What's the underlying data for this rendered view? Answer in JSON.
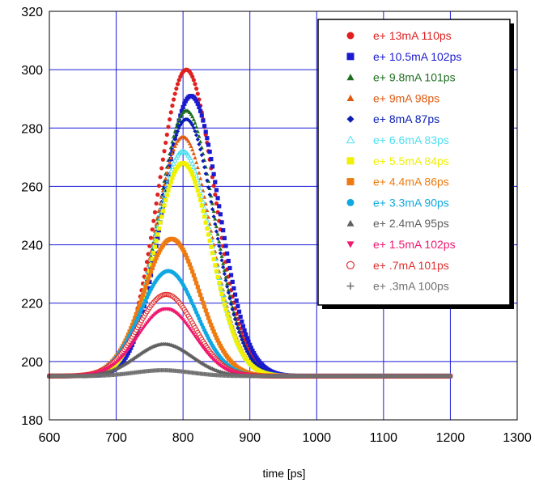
{
  "chart_data": {
    "type": "scatter",
    "title": "",
    "xlabel": "time [ps]",
    "ylabel": "",
    "xlim": [
      600,
      1300
    ],
    "ylim": [
      180,
      320
    ],
    "xticks": [
      600,
      700,
      800,
      900,
      1000,
      1100,
      1200,
      1300
    ],
    "yticks": [
      180,
      200,
      220,
      240,
      260,
      280,
      300,
      320
    ],
    "grid": true,
    "legend_position": "top-right",
    "baseline": 195,
    "x_range": [
      600,
      1200
    ],
    "series": [
      {
        "name": "e+ 13mA 110ps",
        "color": "#e02020",
        "marker": "circle",
        "peak_x": 805,
        "peak_y": 300
      },
      {
        "name": "e+ 10.5mA 102ps",
        "color": "#1a1ad0",
        "marker": "square",
        "peak_x": 812,
        "peak_y": 291
      },
      {
        "name": "e+ 9.8mA 101ps",
        "color": "#1f6e1f",
        "marker": "triangle",
        "peak_x": 805,
        "peak_y": 286
      },
      {
        "name": "e+ 9mA 98ps",
        "color": "#e05a10",
        "marker": "triangle",
        "peak_x": 800,
        "peak_y": 277
      },
      {
        "name": "e+ 8mA 87ps",
        "color": "#0a1eb4",
        "marker": "diamond",
        "peak_x": 805,
        "peak_y": 283
      },
      {
        "name": "e+ 6.6mA 83ps",
        "color": "#4fe0f0",
        "marker": "open-triangle",
        "peak_x": 800,
        "peak_y": 272
      },
      {
        "name": "e+ 5.5mA 84ps",
        "color": "#f0f000",
        "marker": "square",
        "peak_x": 800,
        "peak_y": 268
      },
      {
        "name": "e+ 4.4mA 86ps",
        "color": "#ee7a10",
        "marker": "square",
        "peak_x": 783,
        "peak_y": 242
      },
      {
        "name": "e+ 3.3mA  90ps",
        "color": "#10a8e0",
        "marker": "circle",
        "peak_x": 778,
        "peak_y": 231
      },
      {
        "name": "e+ 2.4mA 95ps",
        "color": "#606060",
        "marker": "triangle",
        "peak_x": 772,
        "peak_y": 206
      },
      {
        "name": "e+ 1.5mA 102ps",
        "color": "#f01870",
        "marker": "triangle-down",
        "peak_x": 775,
        "peak_y": 218
      },
      {
        "name": "e+ .7mA  101ps",
        "color": "#e03030",
        "marker": "open-circle",
        "peak_x": 775,
        "peak_y": 223
      },
      {
        "name": "e+ .3mA  100ps",
        "color": "#707070",
        "marker": "cross",
        "peak_x": 770,
        "peak_y": 197
      }
    ]
  }
}
